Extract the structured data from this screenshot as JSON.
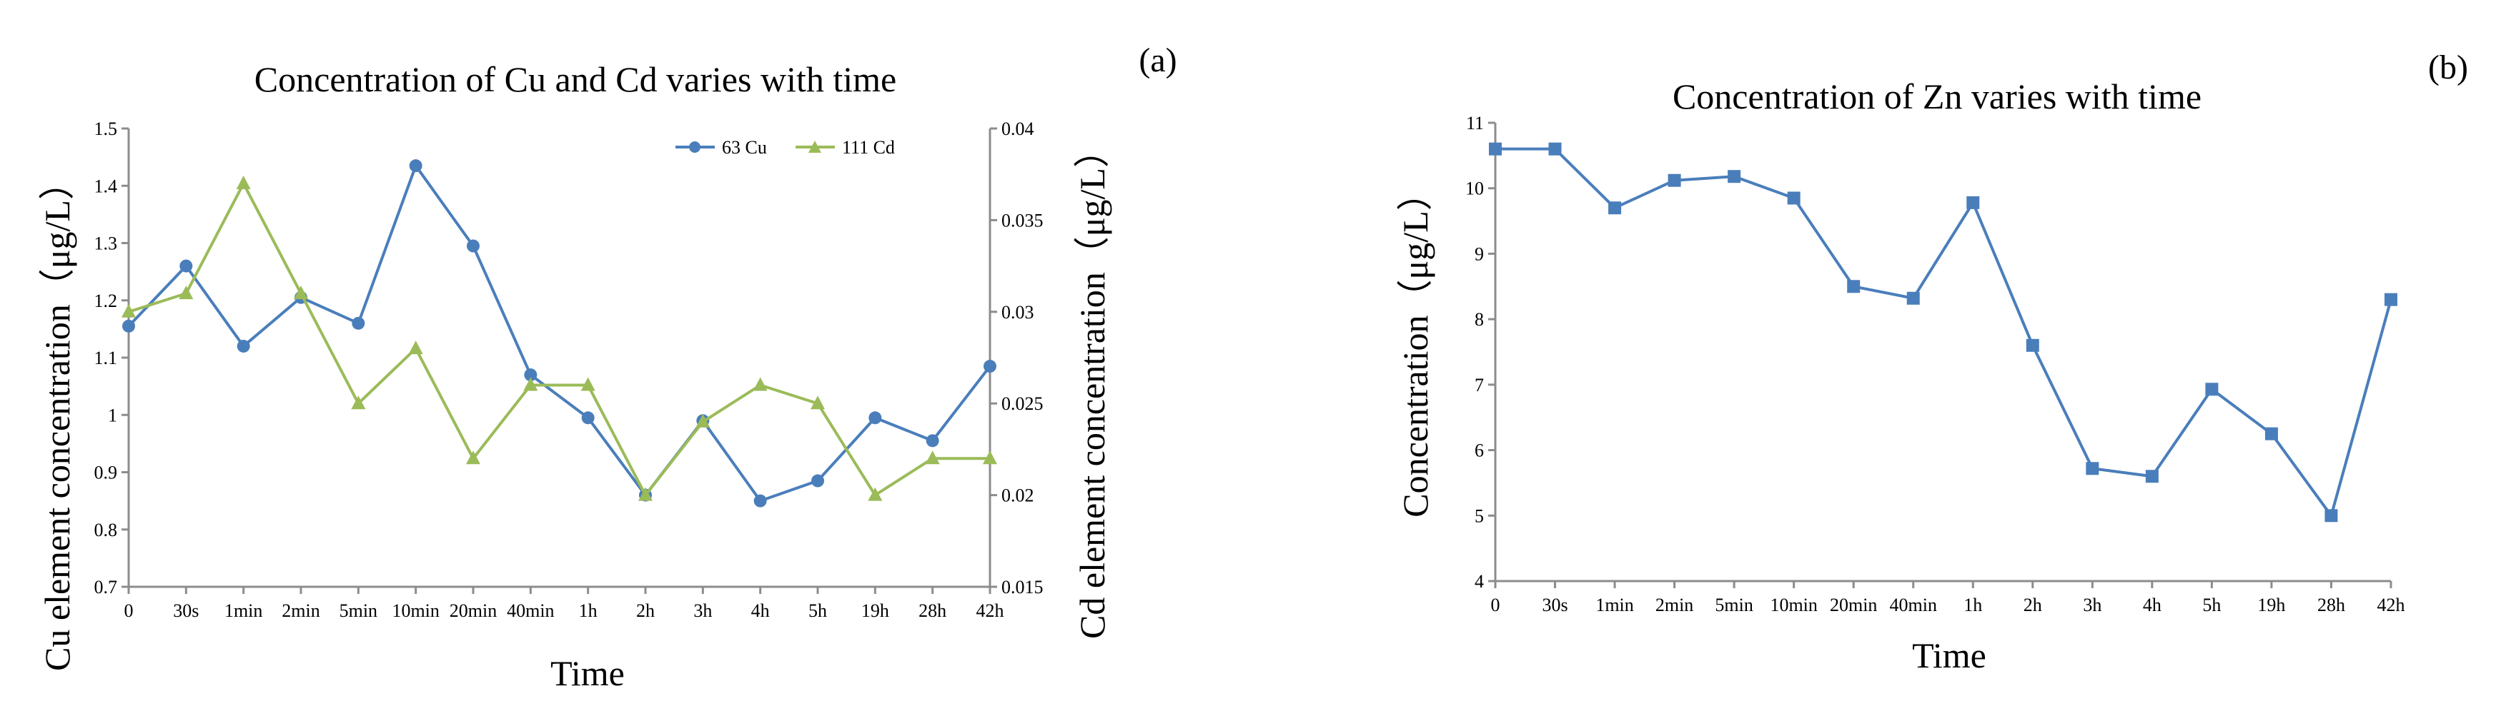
{
  "chart_data": [
    {
      "type": "line",
      "panel_label": "(a)",
      "title": "Concentration of  Cu and Cd varies with time",
      "xlabel": "Time",
      "ylabel": "Cu element concentration（μg/L）",
      "y2label": "Cd element concentration（μg/L）",
      "categories": [
        "0",
        "30s",
        "1min",
        "2min",
        "5min",
        "10min",
        "20min",
        "40min",
        "1h",
        "2h",
        "3h",
        "4h",
        "5h",
        "19h",
        "28h",
        "42h"
      ],
      "ylim": [
        0.7,
        1.5
      ],
      "y_ticks": [
        "0.7",
        "0.8",
        "0.9",
        "1",
        "1.1",
        "1.2",
        "1.3",
        "1.4",
        "1.5"
      ],
      "y2lim": [
        0.015,
        0.04
      ],
      "y2_ticks": [
        "0.015",
        "0.02",
        "0.025",
        "0.03",
        "0.035",
        "0.04"
      ],
      "legend_position": "top-right",
      "series": [
        {
          "name": "63 Cu",
          "axis": "left",
          "marker": "circle",
          "color": "#4a7ebb",
          "values": [
            1.155,
            1.26,
            1.12,
            1.205,
            1.16,
            1.435,
            1.295,
            1.07,
            0.995,
            0.86,
            0.99,
            0.85,
            0.885,
            0.995,
            0.955,
            1.085
          ]
        },
        {
          "name": "111 Cd",
          "axis": "right",
          "marker": "triangle",
          "color": "#9bbb59",
          "values": [
            0.03,
            0.031,
            0.037,
            0.031,
            0.025,
            0.028,
            0.022,
            0.026,
            0.026,
            0.02,
            0.024,
            0.026,
            0.025,
            0.02,
            0.022,
            0.022
          ]
        }
      ]
    },
    {
      "type": "line",
      "panel_label": "(b)",
      "title": "Concentration of  Zn varies with time",
      "xlabel": "Time",
      "ylabel": "Concentration（μg/L）",
      "categories": [
        "0",
        "30s",
        "1min",
        "2min",
        "5min",
        "10min",
        "20min",
        "40min",
        "1h",
        "2h",
        "3h",
        "4h",
        "5h",
        "19h",
        "28h",
        "42h"
      ],
      "ylim": [
        4,
        11
      ],
      "y_ticks": [
        "4",
        "5",
        "6",
        "7",
        "8",
        "9",
        "10",
        "11"
      ],
      "series": [
        {
          "name": "Zn",
          "axis": "left",
          "marker": "square",
          "color": "#4a7ebb",
          "values": [
            10.6,
            10.6,
            9.7,
            10.12,
            10.18,
            9.85,
            8.5,
            8.32,
            9.78,
            7.6,
            5.72,
            5.6,
            6.93,
            6.25,
            5.0,
            8.3
          ]
        }
      ]
    }
  ]
}
